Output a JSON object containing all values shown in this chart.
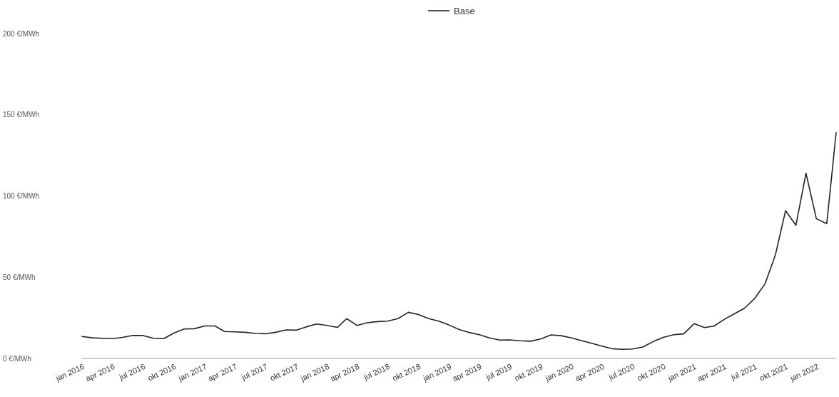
{
  "chart_data": {
    "type": "line",
    "x": [
      "2016-01",
      "2016-02",
      "2016-03",
      "2016-04",
      "2016-05",
      "2016-06",
      "2016-07",
      "2016-08",
      "2016-09",
      "2016-10",
      "2016-11",
      "2016-12",
      "2017-01",
      "2017-02",
      "2017-03",
      "2017-04",
      "2017-05",
      "2017-06",
      "2017-07",
      "2017-08",
      "2017-09",
      "2017-10",
      "2017-11",
      "2017-12",
      "2018-01",
      "2018-02",
      "2018-03",
      "2018-04",
      "2018-05",
      "2018-06",
      "2018-07",
      "2018-08",
      "2018-09",
      "2018-10",
      "2018-11",
      "2018-12",
      "2019-01",
      "2019-02",
      "2019-03",
      "2019-04",
      "2019-05",
      "2019-06",
      "2019-07",
      "2019-08",
      "2019-09",
      "2019-10",
      "2019-11",
      "2019-12",
      "2020-01",
      "2020-02",
      "2020-03",
      "2020-04",
      "2020-05",
      "2020-06",
      "2020-07",
      "2020-08",
      "2020-09",
      "2020-10",
      "2020-11",
      "2020-12",
      "2021-01",
      "2021-02",
      "2021-03",
      "2021-04",
      "2021-05",
      "2021-06",
      "2021-07",
      "2021-08",
      "2021-09",
      "2021-10",
      "2021-11",
      "2021-12",
      "2022-01",
      "2022-02",
      "2022-03"
    ],
    "series": [
      {
        "name": "Base",
        "color": "#222222",
        "values": [
          13.5,
          12.7,
          12.4,
          12.2,
          13,
          14.2,
          14.1,
          12.4,
          12.2,
          15.6,
          18.1,
          18.3,
          20,
          20,
          16.6,
          16.4,
          16.1,
          15.4,
          15.2,
          16.1,
          17.6,
          17.4,
          19.5,
          21.2,
          20.3,
          19.1,
          24.5,
          20.3,
          22,
          22.7,
          23,
          24.5,
          28.4,
          27,
          24.5,
          23,
          20.5,
          17.7,
          16,
          14.6,
          12.6,
          11.3,
          11.4,
          10.9,
          10.6,
          12,
          14.5,
          14,
          12.6,
          10.9,
          9.3,
          7.6,
          6,
          5.6,
          5.8,
          7,
          10.4,
          13,
          14.6,
          15.1,
          21.4,
          19,
          19.9,
          24,
          27.5,
          31,
          37,
          46,
          64,
          91,
          82,
          114,
          86,
          83,
          139
        ]
      }
    ],
    "xlim": [
      "2016-01",
      "2022-03"
    ],
    "xticks": [
      {
        "value": "2016-01",
        "label": "jan 2016"
      },
      {
        "value": "2016-04",
        "label": "apr 2016"
      },
      {
        "value": "2016-07",
        "label": "jul 2016"
      },
      {
        "value": "2016-10",
        "label": "okt 2016"
      },
      {
        "value": "2017-01",
        "label": "jan 2017"
      },
      {
        "value": "2017-04",
        "label": "apr 2017"
      },
      {
        "value": "2017-07",
        "label": "jul 2017"
      },
      {
        "value": "2017-10",
        "label": "okt 2017"
      },
      {
        "value": "2018-01",
        "label": "jan 2018"
      },
      {
        "value": "2018-04",
        "label": "apr 2018"
      },
      {
        "value": "2018-07",
        "label": "jul 2018"
      },
      {
        "value": "2018-10",
        "label": "okt 2018"
      },
      {
        "value": "2019-01",
        "label": "jan 2019"
      },
      {
        "value": "2019-04",
        "label": "apr 2019"
      },
      {
        "value": "2019-07",
        "label": "jul 2019"
      },
      {
        "value": "2019-10",
        "label": "okt 2019"
      },
      {
        "value": "2020-01",
        "label": "jan 2020"
      },
      {
        "value": "2020-04",
        "label": "apr 2020"
      },
      {
        "value": "2020-07",
        "label": "jul 2020"
      },
      {
        "value": "2020-10",
        "label": "okt 2020"
      },
      {
        "value": "2021-01",
        "label": "jan 2021"
      },
      {
        "value": "2021-04",
        "label": "apr 2021"
      },
      {
        "value": "2021-07",
        "label": "jul 2021"
      },
      {
        "value": "2021-10",
        "label": "okt 2021"
      },
      {
        "value": "2022-01",
        "label": "jan 2022"
      }
    ],
    "ylim": [
      0,
      200
    ],
    "yticks": [
      {
        "value": 0,
        "label": "0 €/MWh"
      },
      {
        "value": 50,
        "label": "50 €/MWh"
      },
      {
        "value": 100,
        "label": "100 €/MWh"
      },
      {
        "value": 150,
        "label": "150 €/MWh"
      },
      {
        "value": 200,
        "label": "200 €/MWh"
      }
    ],
    "legend": "top",
    "grid": false,
    "marker": "none",
    "line_style": "solid"
  }
}
